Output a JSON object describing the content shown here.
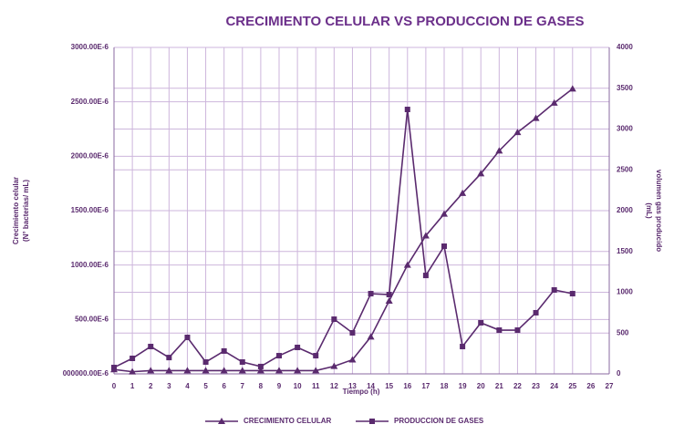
{
  "chart_data": {
    "type": "line",
    "title": "CRECIMIENTO CELULAR VS PRODUCCION DE GASES",
    "x_label": "Tiempo (h)",
    "y_label": [
      "Crecimiento celular",
      "(N° bacterias/ mL)"
    ],
    "y2_label": [
      "volumen gas producido",
      "(mL)"
    ],
    "x": [
      0,
      1,
      2,
      3,
      4,
      5,
      6,
      7,
      8,
      9,
      10,
      11,
      12,
      13,
      14,
      15,
      16,
      17,
      18,
      19,
      20,
      21,
      22,
      23,
      24,
      25
    ],
    "xlim": [
      0,
      27
    ],
    "xticks": [
      0,
      1,
      2,
      3,
      4,
      5,
      6,
      7,
      8,
      9,
      10,
      11,
      12,
      13,
      14,
      15,
      16,
      17,
      18,
      19,
      20,
      21,
      22,
      23,
      24,
      25,
      26,
      27
    ],
    "ylim": [
      0,
      0.003
    ],
    "yticks": [
      {
        "value": 0,
        "label": "000000.00E-6"
      },
      {
        "value": 0.0005,
        "label": "500.00E-6"
      },
      {
        "value": 0.001,
        "label": "1000.00E-6"
      },
      {
        "value": 0.0015,
        "label": "1500.00E-6"
      },
      {
        "value": 0.002,
        "label": "2000.00E-6"
      },
      {
        "value": 0.0025,
        "label": "2500.00E-6"
      },
      {
        "value": 0.003,
        "label": "3000.00E-6"
      }
    ],
    "y2lim": [
      0,
      4000
    ],
    "y2ticks": [
      0,
      500,
      1000,
      1500,
      2000,
      2500,
      3000,
      3500,
      4000
    ],
    "grid": true,
    "legend": "bottom",
    "series": [
      {
        "name": "CRECIMIENTO CELULAR",
        "color": "#5a2a6e",
        "axis": "y",
        "values": [
          4e-05,
          2e-05,
          3e-05,
          3e-05,
          3e-05,
          3e-05,
          3e-05,
          3e-05,
          3e-05,
          3e-05,
          3e-05,
          3e-05,
          7e-05,
          0.00013,
          0.00034,
          0.00067,
          0.001,
          0.00127,
          0.00147,
          0.00166,
          0.00184,
          0.00205,
          0.00222,
          0.00235,
          0.00249,
          0.00262
        ]
      },
      {
        "name": "PRODUCCION DE GASES",
        "color": "#5a2a6e",
        "axis": "y2",
        "values": [
          78,
          190,
          335,
          200,
          447,
          145,
          280,
          145,
          90,
          223,
          324,
          223,
          670,
          503,
          983,
          972,
          3240,
          1206,
          1564,
          335,
          626,
          536,
          536,
          749,
          1028,
          983
        ]
      }
    ]
  }
}
